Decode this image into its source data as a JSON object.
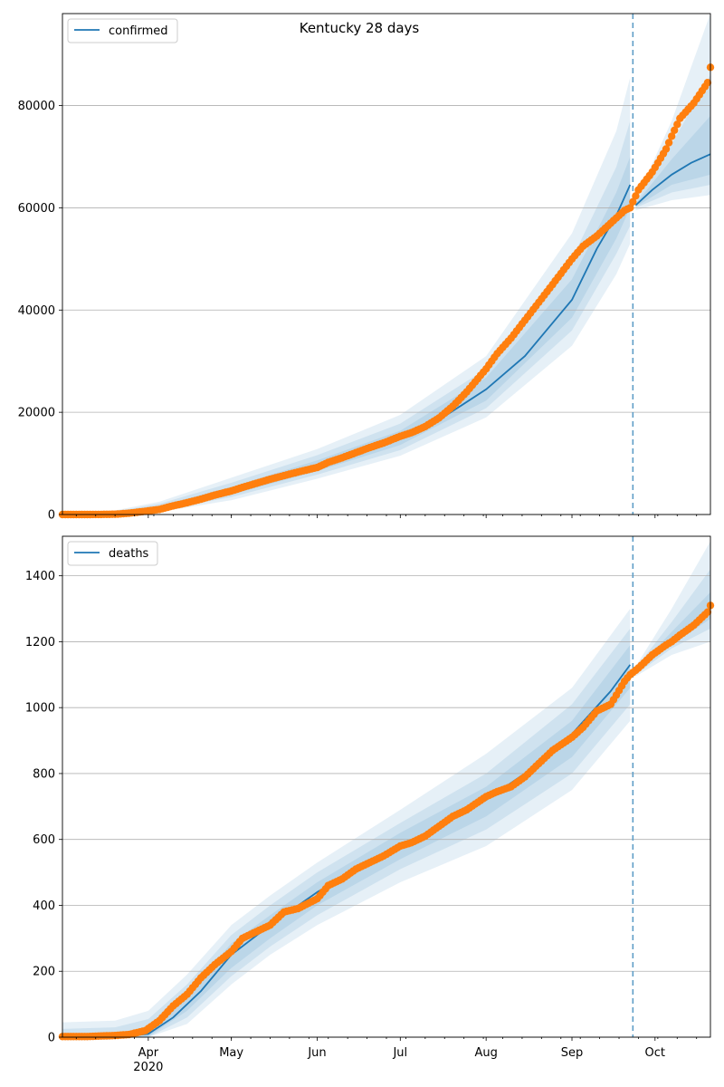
{
  "figure": {
    "title": "Kentucky 28 days"
  },
  "colors": {
    "model": "#1f77b4",
    "observed": "#ff7f0e",
    "grid": "#b0b0b0",
    "band": "#1f77b4",
    "divider": "#5f9ec7"
  },
  "x_ticks": [
    {
      "day": 31,
      "label": "Apr",
      "year": "2020"
    },
    {
      "day": 61,
      "label": "May"
    },
    {
      "day": 92,
      "label": "Jun"
    },
    {
      "day": 122,
      "label": "Jul"
    },
    {
      "day": 153,
      "label": "Aug"
    },
    {
      "day": 184,
      "label": "Sep"
    },
    {
      "day": 214,
      "label": "Oct"
    }
  ],
  "chart_data": [
    {
      "type": "line",
      "legend": "confirmed",
      "legend_position": "top-left",
      "grid": "horizontal",
      "x_axis": "date, 2020-03-01 to 2020-10-21",
      "xlim": [
        "2020-03-01",
        "2020-10-21"
      ],
      "ylim": [
        0,
        98000
      ],
      "yticks": [
        0,
        20000,
        40000,
        60000,
        80000
      ],
      "forecast_start": "2020-09-23",
      "model_fit": {
        "x": [
          "2020-03-01",
          "2020-03-10",
          "2020-03-20",
          "2020-03-30",
          "2020-04-05",
          "2020-04-15",
          "2020-05-01",
          "2020-05-15",
          "2020-06-01",
          "2020-06-15",
          "2020-07-01",
          "2020-07-15",
          "2020-08-01",
          "2020-08-15",
          "2020-09-01",
          "2020-09-10",
          "2020-09-17",
          "2020-09-22"
        ],
        "y": [
          0,
          0,
          0,
          400,
          1300,
          2600,
          4600,
          6800,
          9500,
          12100,
          15000,
          18500,
          24500,
          31000,
          42000,
          52000,
          58500,
          64500
        ]
      },
      "model_forecast": {
        "x": [
          "2020-09-24",
          "2020-09-30",
          "2020-10-07",
          "2020-10-14",
          "2020-10-21"
        ],
        "y": [
          60500,
          63500,
          66500,
          68800,
          70500
        ]
      },
      "bands": [
        {
          "x": [
            "2020-03-20",
            "2020-04-05",
            "2020-05-01",
            "2020-06-01",
            "2020-07-01",
            "2020-08-01",
            "2020-09-01",
            "2020-09-17",
            "2020-09-22"
          ],
          "lower": [
            0,
            500,
            2800,
            7000,
            11500,
            19000,
            33000,
            47000,
            53000
          ],
          "upper": [
            800,
            2500,
            7200,
            12800,
            19500,
            31000,
            55000,
            75000,
            85500
          ]
        },
        {
          "x": [
            "2020-03-20",
            "2020-04-05",
            "2020-05-01",
            "2020-06-01",
            "2020-07-01",
            "2020-08-01",
            "2020-09-01",
            "2020-09-17",
            "2020-09-22"
          ],
          "lower": [
            0,
            800,
            3400,
            7800,
            12600,
            20800,
            36000,
            51000,
            56500
          ],
          "upper": [
            600,
            2100,
            6200,
            11600,
            17800,
            28500,
            50000,
            68000,
            77000
          ]
        },
        {
          "x": [
            "2020-03-20",
            "2020-04-05",
            "2020-05-01",
            "2020-06-01",
            "2020-07-01",
            "2020-08-01",
            "2020-09-01",
            "2020-09-17",
            "2020-09-22"
          ],
          "lower": [
            0,
            1000,
            3900,
            8500,
            13600,
            22300,
            38500,
            54000,
            60000
          ],
          "upper": [
            400,
            1700,
            5400,
            10600,
            16400,
            26800,
            46000,
            63000,
            70000
          ]
        },
        {
          "x": [
            "2020-09-24",
            "2020-10-07",
            "2020-10-21"
          ],
          "lower": [
            59500,
            61500,
            62500
          ],
          "upper": [
            61500,
            77000,
            98000
          ]
        },
        {
          "x": [
            "2020-09-24",
            "2020-10-07",
            "2020-10-21"
          ],
          "lower": [
            60000,
            63000,
            64500
          ],
          "upper": [
            61000,
            72500,
            86000
          ]
        },
        {
          "x": [
            "2020-09-24",
            "2020-10-07",
            "2020-10-21"
          ],
          "lower": [
            60200,
            64500,
            66500
          ],
          "upper": [
            60800,
            69500,
            78000
          ]
        }
      ],
      "observed": {
        "x": [
          "2020-03-01",
          "2020-03-10",
          "2020-03-20",
          "2020-03-25",
          "2020-04-01",
          "2020-04-05",
          "2020-04-10",
          "2020-04-15",
          "2020-04-20",
          "2020-04-25",
          "2020-05-01",
          "2020-05-05",
          "2020-05-10",
          "2020-05-15",
          "2020-05-20",
          "2020-05-25",
          "2020-06-01",
          "2020-06-05",
          "2020-06-10",
          "2020-06-15",
          "2020-06-20",
          "2020-06-25",
          "2020-07-01",
          "2020-07-05",
          "2020-07-10",
          "2020-07-15",
          "2020-07-20",
          "2020-07-25",
          "2020-08-01",
          "2020-08-05",
          "2020-08-10",
          "2020-08-15",
          "2020-08-20",
          "2020-08-25",
          "2020-09-01",
          "2020-09-05",
          "2020-09-10",
          "2020-09-15",
          "2020-09-20",
          "2020-09-22",
          "2020-09-25",
          "2020-09-30",
          "2020-10-05",
          "2020-10-07",
          "2020-10-10",
          "2020-10-15",
          "2020-10-20",
          "2020-10-21"
        ],
        "y": [
          0,
          0,
          50,
          250,
          700,
          1000,
          1700,
          2300,
          3000,
          3800,
          4600,
          5300,
          6100,
          6900,
          7600,
          8300,
          9200,
          10200,
          11100,
          12100,
          13100,
          14000,
          15300,
          16000,
          17200,
          18900,
          21200,
          24000,
          28500,
          31500,
          34500,
          38000,
          41500,
          45000,
          50000,
          52500,
          54500,
          57000,
          59500,
          60000,
          63500,
          67000,
          71500,
          74000,
          77500,
          80500,
          84500,
          87500
        ]
      }
    },
    {
      "type": "line",
      "legend": "deaths",
      "legend_position": "top-left",
      "grid": "horizontal",
      "x_axis": "date, 2020-03-01 to 2020-10-21",
      "xlim": [
        "2020-03-01",
        "2020-10-21"
      ],
      "ylim": [
        0,
        1520
      ],
      "yticks": [
        0,
        200,
        400,
        600,
        800,
        1000,
        1200,
        1400
      ],
      "forecast_start": "2020-09-23",
      "model_fit": {
        "x": [
          "2020-03-01",
          "2020-03-20",
          "2020-04-01",
          "2020-04-10",
          "2020-04-20",
          "2020-05-01",
          "2020-05-15",
          "2020-06-01",
          "2020-06-15",
          "2020-07-01",
          "2020-07-15",
          "2020-08-01",
          "2020-08-15",
          "2020-09-01",
          "2020-09-15",
          "2020-09-22"
        ],
        "y": [
          0,
          0,
          10,
          60,
          140,
          250,
          340,
          440,
          510,
          580,
          640,
          720,
          800,
          920,
          1050,
          1130
        ]
      },
      "model_forecast": {
        "x": [
          "2020-09-24",
          "2020-10-01",
          "2020-10-07",
          "2020-10-14",
          "2020-10-21"
        ],
        "y": [
          1110,
          1160,
          1200,
          1250,
          1300
        ]
      },
      "bands": [
        {
          "x": [
            "2020-03-01",
            "2020-03-20",
            "2020-04-01",
            "2020-04-15",
            "2020-05-01",
            "2020-05-15",
            "2020-06-01",
            "2020-07-01",
            "2020-08-01",
            "2020-09-01",
            "2020-09-22"
          ],
          "lower": [
            0,
            0,
            0,
            40,
            160,
            250,
            340,
            470,
            580,
            750,
            960
          ],
          "upper": [
            45,
            50,
            80,
            190,
            340,
            430,
            530,
            690,
            860,
            1060,
            1300
          ]
        },
        {
          "x": [
            "2020-03-01",
            "2020-03-20",
            "2020-04-01",
            "2020-04-15",
            "2020-05-01",
            "2020-05-15",
            "2020-06-01",
            "2020-07-01",
            "2020-08-01",
            "2020-09-01",
            "2020-09-22"
          ],
          "lower": [
            0,
            0,
            0,
            60,
            185,
            275,
            370,
            510,
            630,
            800,
            1010
          ],
          "upper": [
            25,
            30,
            55,
            160,
            310,
            400,
            500,
            650,
            800,
            1010,
            1240
          ]
        },
        {
          "x": [
            "2020-03-01",
            "2020-03-20",
            "2020-04-01",
            "2020-04-15",
            "2020-05-01",
            "2020-05-15",
            "2020-06-01",
            "2020-07-01",
            "2020-08-01",
            "2020-09-01",
            "2020-09-22"
          ],
          "lower": [
            0,
            0,
            2,
            80,
            210,
            300,
            400,
            540,
            670,
            850,
            1060
          ],
          "upper": [
            10,
            12,
            30,
            130,
            285,
            370,
            470,
            620,
            760,
            960,
            1190
          ]
        },
        {
          "x": [
            "2020-09-24",
            "2020-10-07",
            "2020-10-21"
          ],
          "lower": [
            1095,
            1160,
            1200
          ],
          "upper": [
            1125,
            1300,
            1505
          ]
        },
        {
          "x": [
            "2020-09-24",
            "2020-10-07",
            "2020-10-21"
          ],
          "lower": [
            1100,
            1180,
            1240
          ],
          "upper": [
            1120,
            1260,
            1420
          ]
        },
        {
          "x": [
            "2020-09-24",
            "2020-10-07",
            "2020-10-21"
          ],
          "lower": [
            1105,
            1190,
            1270
          ],
          "upper": [
            1115,
            1230,
            1350
          ]
        }
      ],
      "observed": {
        "x": [
          "2020-03-01",
          "2020-03-10",
          "2020-03-20",
          "2020-03-25",
          "2020-03-31",
          "2020-04-05",
          "2020-04-10",
          "2020-04-15",
          "2020-04-20",
          "2020-04-25",
          "2020-05-01",
          "2020-05-05",
          "2020-05-10",
          "2020-05-15",
          "2020-05-20",
          "2020-05-25",
          "2020-06-01",
          "2020-06-05",
          "2020-06-10",
          "2020-06-15",
          "2020-06-20",
          "2020-06-25",
          "2020-07-01",
          "2020-07-05",
          "2020-07-10",
          "2020-07-15",
          "2020-07-20",
          "2020-07-25",
          "2020-08-01",
          "2020-08-05",
          "2020-08-10",
          "2020-08-15",
          "2020-08-20",
          "2020-08-25",
          "2020-09-01",
          "2020-09-05",
          "2020-09-10",
          "2020-09-15",
          "2020-09-20",
          "2020-09-22",
          "2020-09-25",
          "2020-09-30",
          "2020-10-05",
          "2020-10-07",
          "2020-10-10",
          "2020-10-15",
          "2020-10-20",
          "2020-10-21"
        ],
        "y": [
          2,
          2,
          5,
          8,
          20,
          50,
          95,
          130,
          180,
          220,
          260,
          300,
          320,
          340,
          380,
          390,
          420,
          460,
          480,
          510,
          530,
          550,
          580,
          590,
          610,
          640,
          670,
          690,
          730,
          745,
          760,
          790,
          830,
          870,
          910,
          940,
          990,
          1010,
          1080,
          1100,
          1120,
          1160,
          1190,
          1200,
          1220,
          1250,
          1290,
          1310
        ]
      }
    }
  ]
}
